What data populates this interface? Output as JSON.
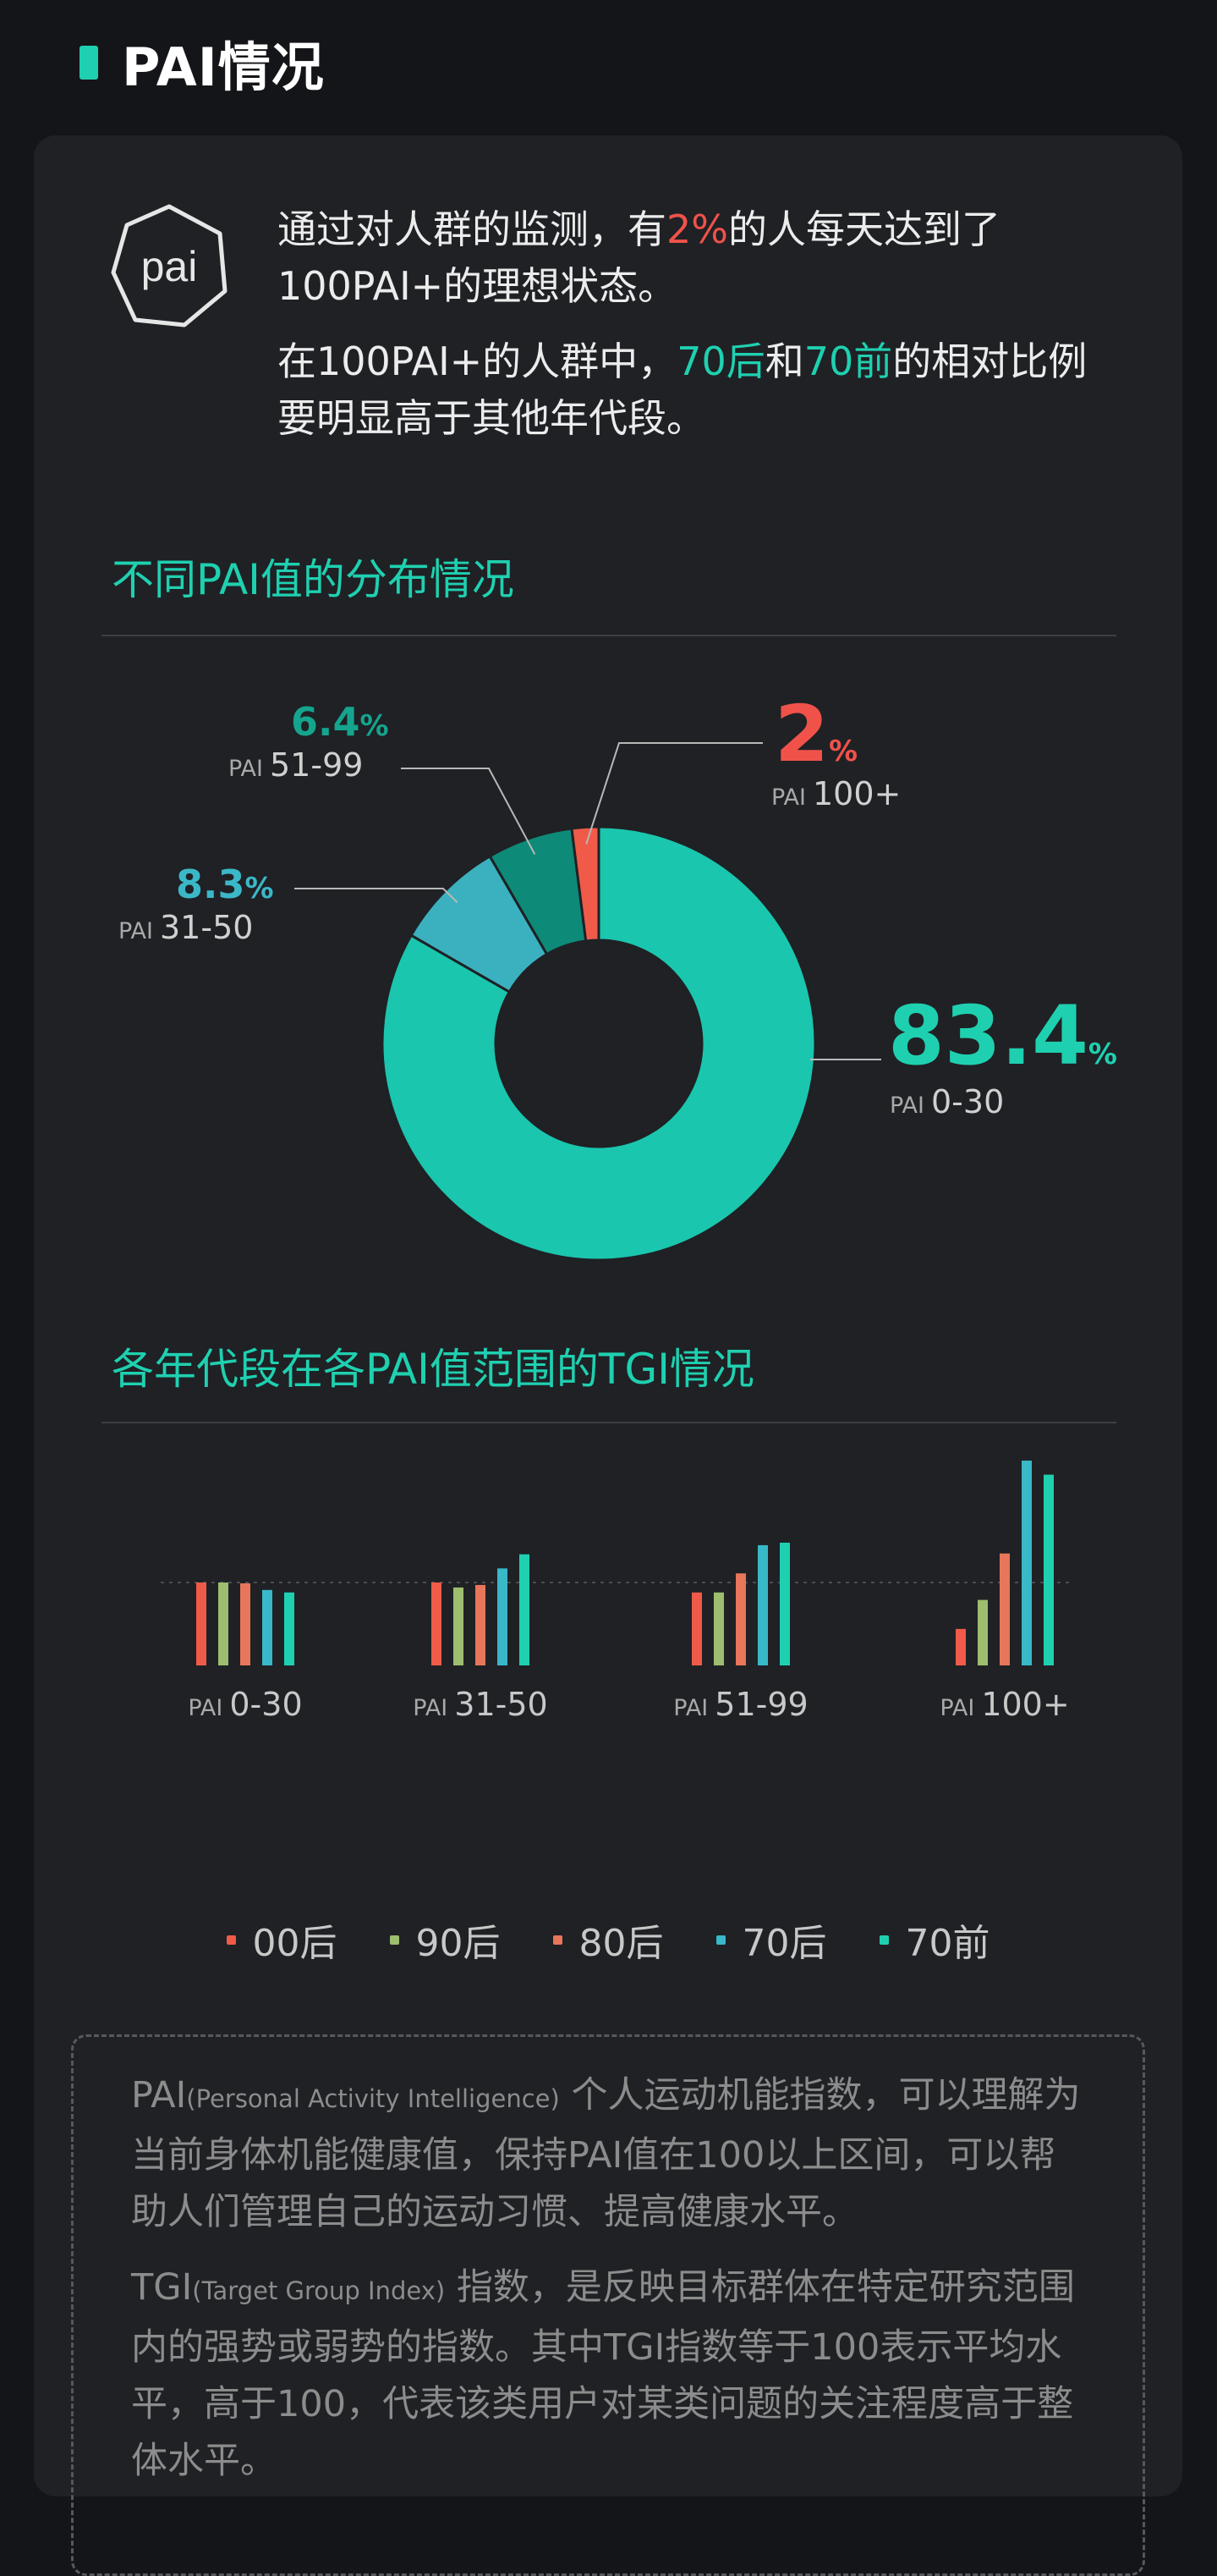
{
  "header": {
    "title": "PAI情况"
  },
  "logo": {
    "text": "pai"
  },
  "intro": {
    "p1_a": "通过对人群的监测，有",
    "p1_pct": "2%",
    "p1_b": "的人每天达到了100PAI+的理想状态。",
    "p2_a": "在100PAI+的人群中，",
    "p2_t1": "70后",
    "p2_and": "和",
    "p2_t2": "70前",
    "p2_b": "的相对比例要明显高于其他年代段。"
  },
  "section1": {
    "title": "不同PAI值的分布情况"
  },
  "section2": {
    "title": "各年代段在各PAI值范围的TGI情况"
  },
  "pai_prefix": "PAI",
  "donut_labels": [
    {
      "num": "83.4",
      "unit": "%",
      "range": "0-30"
    },
    {
      "num": "8.3",
      "unit": "%",
      "range": "31-50"
    },
    {
      "num": "6.4",
      "unit": "%",
      "range": "51-99"
    },
    {
      "num": "2",
      "unit": "%",
      "range": "100+"
    }
  ],
  "legend": [
    {
      "label": "00后",
      "color": "#ef5b48"
    },
    {
      "label": "90后",
      "color": "#9dbd6f"
    },
    {
      "label": "80后",
      "color": "#e8765a"
    },
    {
      "label": "70后",
      "color": "#38b8c8"
    },
    {
      "label": "70前",
      "color": "#1fd0b0"
    }
  ],
  "note": {
    "p1_head": "PAI",
    "p1_small": "(Personal Activity Intelligence)",
    "p1_body": " 个人运动机能指数，可以理解为当前身体机能健康值，保持PAI值在100以上区间，可以帮助人们管理自己的运动习惯、提高健康水平。",
    "p2_head": "TGI",
    "p2_small": "(Target Group Index)",
    "p2_body": " 指数，是反映目标群体在特定研究范围内的强势或弱势的指数。其中TGI指数等于100表示平均水平，高于100，代表该类用户对某类问题的关注程度高于整体水平。"
  },
  "chart_data": [
    {
      "type": "pie",
      "title": "不同PAI值的分布情况",
      "categories": [
        "PAI 0-30",
        "PAI 31-50",
        "PAI 51-99",
        "PAI 100+"
      ],
      "values": [
        83.4,
        8.3,
        6.4,
        2
      ],
      "unit": "%",
      "colors": [
        "#1ac6ae",
        "#3bb1bf",
        "#0d8b78",
        "#ef5b48"
      ],
      "hole": true
    },
    {
      "type": "bar",
      "title": "各年代段在各PAI值范围的TGI情况",
      "categories": [
        "PAI 0-30",
        "PAI 31-50",
        "PAI 51-99",
        "PAI 100+"
      ],
      "reference": 100,
      "series": [
        {
          "name": "00后",
          "values": [
            100,
            100,
            88,
            44
          ]
        },
        {
          "name": "90后",
          "values": [
            100,
            94,
            88,
            79
          ]
        },
        {
          "name": "80后",
          "values": [
            99,
            97,
            111,
            135
          ]
        },
        {
          "name": "70后",
          "values": [
            91,
            117,
            145,
            247
          ]
        },
        {
          "name": "70前",
          "values": [
            88,
            134,
            148,
            230
          ]
        }
      ]
    }
  ]
}
